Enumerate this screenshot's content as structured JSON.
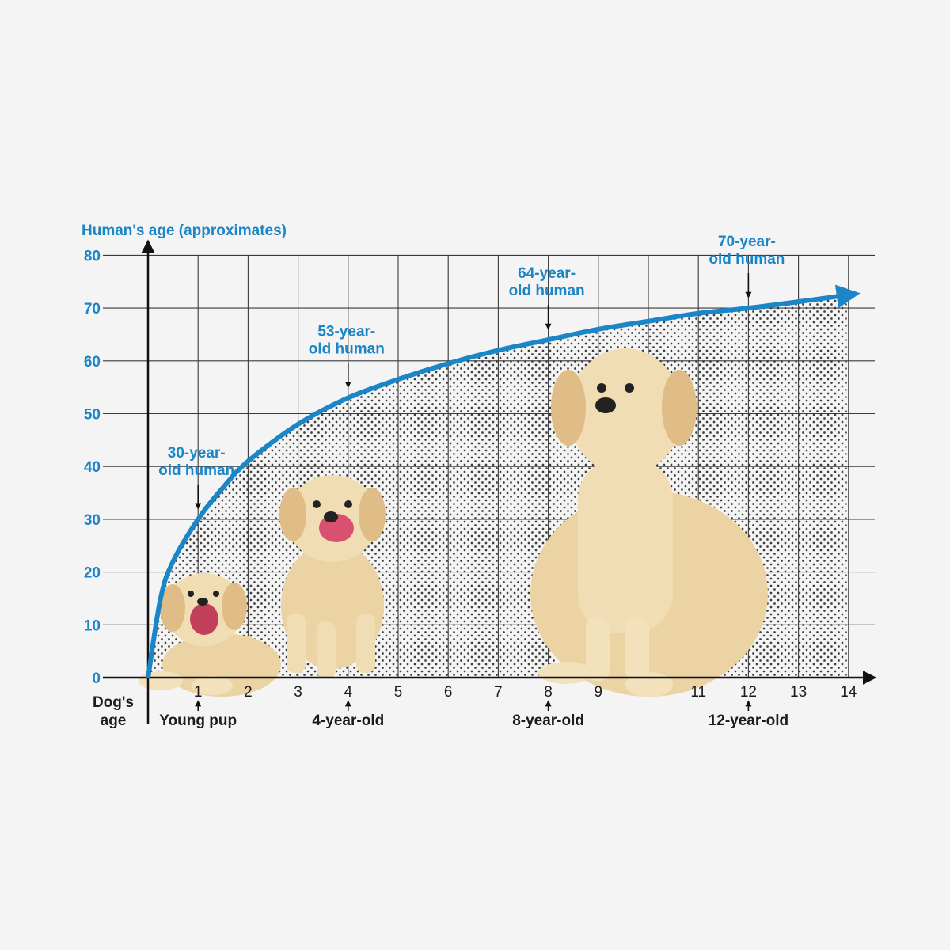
{
  "colors": {
    "curve": "#1a85c7",
    "grid": "#3a3a3a",
    "background": "#f4f4f4",
    "dog_fur": "#ead2a0"
  },
  "chart_data": {
    "type": "area",
    "ylabel": "Human's age (approximates)",
    "xlabel": "Dog's age",
    "ylim": [
      0,
      80
    ],
    "xlim": [
      0,
      14
    ],
    "y_ticks": [
      "0",
      "10",
      "20",
      "30",
      "40",
      "50",
      "60",
      "70",
      "80"
    ],
    "x_ticks": [
      "1",
      "2",
      "3",
      "4",
      "5",
      "6",
      "7",
      "8",
      "9",
      "11",
      "12",
      "13",
      "14"
    ],
    "grid": true,
    "series": [
      {
        "x": [
          0,
          0.25,
          0.5,
          1,
          1.5,
          2,
          3,
          4,
          5,
          6,
          7,
          8,
          9,
          10,
          11,
          12,
          13,
          14
        ],
        "y": [
          0,
          15,
          22,
          30,
          36,
          41,
          48,
          53,
          56.5,
          59.5,
          62,
          64,
          66,
          67.5,
          69,
          70,
          71.2,
          72.5
        ]
      }
    ],
    "annotations": [
      {
        "x": 1,
        "y": 30,
        "line1": "30-year-",
        "line2": "old human"
      },
      {
        "x": 4,
        "y": 53,
        "line1": "53-year-",
        "line2": "old human"
      },
      {
        "x": 8,
        "y": 64,
        "line1": "64-year-",
        "line2": "old human"
      },
      {
        "x": 12,
        "y": 70,
        "line1": "70-year-",
        "line2": "old human"
      }
    ],
    "x_markers": [
      {
        "x": 1,
        "label": "Young pup"
      },
      {
        "x": 4,
        "label": "4-year-old"
      },
      {
        "x": 8,
        "label": "8-year-old"
      },
      {
        "x": 12,
        "label": "12-year-old"
      }
    ]
  },
  "labels": {
    "dog_axis_line1": "Dog's",
    "dog_axis_line2": "age"
  },
  "images": [
    "labrador-puppy-lying",
    "labrador-puppy-licking",
    "labrador-sitting-adult"
  ]
}
